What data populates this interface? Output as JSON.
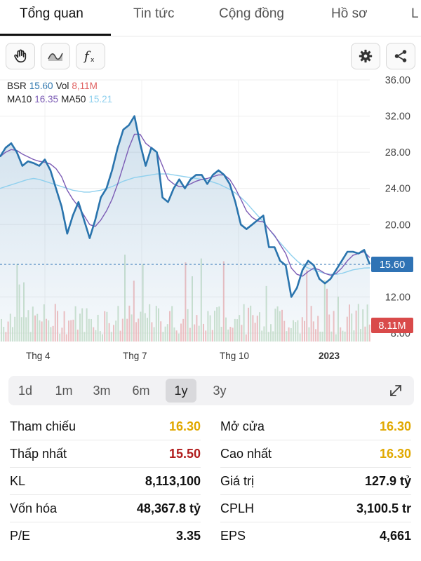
{
  "tabs": [
    {
      "label": "Tổng quan",
      "active": true
    },
    {
      "label": "Tin tức",
      "active": false
    },
    {
      "label": "Cộng đồng",
      "active": false
    },
    {
      "label": "Hồ sơ",
      "active": false
    },
    {
      "label": "L",
      "active": false
    }
  ],
  "toolbar": {
    "left_tools": [
      "hand-icon",
      "line-chart-icon",
      "function-icon"
    ],
    "right_tools": [
      "gear-icon",
      "share-icon"
    ]
  },
  "legend": {
    "symbol": "BSR",
    "price": "15.60",
    "vol_label": "Vol",
    "vol": "8,11M",
    "ma10_label": "MA10",
    "ma10": "16.35",
    "ma50_label": "MA50",
    "ma50": "15.21"
  },
  "colors": {
    "price": "#2a74ad",
    "vol": "#e06060",
    "ma10": "#7c5cb5",
    "ma50": "#8fd0ee",
    "badge_price": "#2f73b5",
    "badge_vol": "#d94a4a",
    "yellow": "#e0a800",
    "red": "#b11c1c"
  },
  "chart_data": {
    "type": "line",
    "y_ticks": [
      "36.00",
      "32.00",
      "28.00",
      "24.00",
      "20.00",
      "12.00",
      "8.00"
    ],
    "y_tick_values": [
      36,
      32,
      28,
      24,
      20,
      12,
      8
    ],
    "ylim": [
      8,
      36
    ],
    "x_ticks": [
      "Thg 4",
      "Thg 7",
      "Thg 10",
      "2023"
    ],
    "x_tick_positions": [
      0.115,
      0.345,
      0.575,
      0.81
    ],
    "current_price_label": "15.60",
    "current_price": 15.6,
    "current_vol_label": "8.11M",
    "series": [
      {
        "name": "BSR",
        "values": [
          27.5,
          28.5,
          29.0,
          28.0,
          26.5,
          27.0,
          26.8,
          26.5,
          27.2,
          26.0,
          24.0,
          22.0,
          19.0,
          21.0,
          22.5,
          20.5,
          18.5,
          20.5,
          23.0,
          24.0,
          26.0,
          28.5,
          30.5,
          31.0,
          32.0,
          29.0,
          26.5,
          28.5,
          28.0,
          23.0,
          22.5,
          24.0,
          25.0,
          24.0,
          25.0,
          25.5,
          25.5,
          24.5,
          25.5,
          26.0,
          25.5,
          24.5,
          22.5,
          20.0,
          19.5,
          20.0,
          20.5,
          21.0,
          17.5,
          17.5,
          16.0,
          15.5,
          12.0,
          13.0,
          15.0,
          16.0,
          15.5,
          14.0,
          13.5,
          14.0,
          15.0,
          16.0,
          17.0,
          17.0,
          16.8,
          17.2,
          15.6
        ]
      },
      {
        "name": "MA10",
        "values": [
          27.5,
          28.0,
          28.3,
          28.2,
          27.8,
          27.5,
          27.2,
          27.0,
          26.9,
          26.7,
          26.2,
          25.3,
          23.8,
          22.8,
          22.0,
          21.0,
          20.0,
          19.8,
          20.5,
          21.5,
          22.8,
          24.5,
          26.5,
          28.5,
          30.0,
          30.0,
          29.0,
          28.5,
          28.0,
          26.5,
          25.0,
          24.5,
          24.2,
          24.2,
          24.5,
          24.8,
          25.0,
          25.1,
          25.3,
          25.5,
          25.5,
          25.0,
          24.0,
          22.8,
          21.5,
          20.8,
          20.4,
          20.3,
          19.5,
          18.8,
          17.8,
          16.8,
          15.2,
          14.5,
          14.3,
          14.8,
          15.2,
          15.0,
          14.6,
          14.4,
          14.6,
          15.2,
          16.0,
          16.6,
          16.8,
          17.0,
          16.35
        ]
      },
      {
        "name": "MA50",
        "values": [
          24.0,
          24.2,
          24.4,
          24.6,
          24.8,
          25.0,
          25.1,
          25.0,
          24.8,
          24.6,
          24.4,
          24.2,
          24.0,
          23.8,
          23.7,
          23.6,
          23.6,
          23.7,
          23.8,
          24.0,
          24.2,
          24.5,
          24.8,
          25.0,
          25.2,
          25.3,
          25.4,
          25.5,
          25.6,
          25.6,
          25.6,
          25.5,
          25.4,
          25.3,
          25.2,
          25.1,
          25.0,
          24.9,
          24.7,
          24.5,
          24.2,
          23.9,
          23.5,
          23.0,
          22.4,
          21.7,
          21.0,
          20.3,
          19.5,
          18.7,
          18.0,
          17.3,
          16.6,
          16.0,
          15.5,
          15.2,
          15.0,
          14.8,
          14.6,
          14.5,
          14.5,
          14.6,
          14.8,
          15.0,
          15.1,
          15.2,
          15.21
        ]
      }
    ]
  },
  "periods": [
    {
      "label": "1d",
      "active": false
    },
    {
      "label": "1m",
      "active": false
    },
    {
      "label": "3m",
      "active": false
    },
    {
      "label": "6m",
      "active": false
    },
    {
      "label": "1y",
      "active": true
    },
    {
      "label": "3y",
      "active": false
    }
  ],
  "stats_left": [
    {
      "label": "Tham chiếu",
      "value": "16.30",
      "color": "yellow"
    },
    {
      "label": "Thấp nhất",
      "value": "15.50",
      "color": "red"
    },
    {
      "label": "KL",
      "value": "8,113,100",
      "color": "dark"
    },
    {
      "label": "Vốn hóa",
      "value": "48,367.8 tỷ",
      "color": "dark"
    },
    {
      "label": "P/E",
      "value": "3.35",
      "color": "dark"
    }
  ],
  "stats_right": [
    {
      "label": "Mở cửa",
      "value": "16.30",
      "color": "yellow"
    },
    {
      "label": "Cao nhất",
      "value": "16.30",
      "color": "yellow"
    },
    {
      "label": "Giá trị",
      "value": "127.9 tỷ",
      "color": "dark"
    },
    {
      "label": "CPLH",
      "value": "3,100.5 tr",
      "color": "dark"
    },
    {
      "label": "EPS",
      "value": "4,661",
      "color": "dark"
    }
  ]
}
